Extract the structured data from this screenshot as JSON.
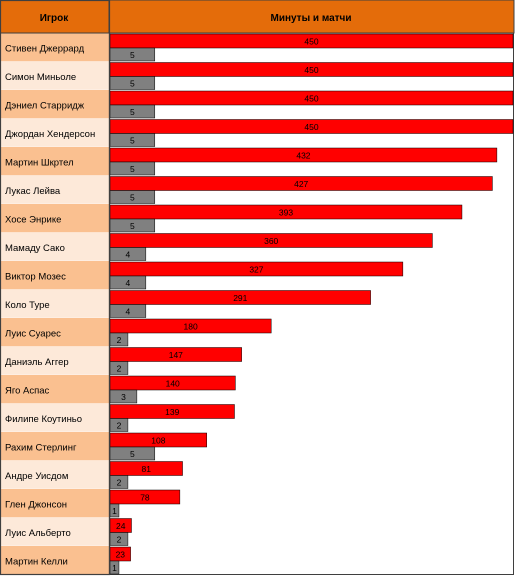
{
  "header": {
    "player_col": "Игрок",
    "value_col": "Минуты и матчи"
  },
  "colors": {
    "header_bg": "#e46c0a",
    "row_dark": "#fac090",
    "row_light": "#fde9d9",
    "minutes_bar": "#ff0000",
    "matches_bar": "#808080",
    "border": "#3f3f3f"
  },
  "chart_data": {
    "type": "bar",
    "orientation": "horizontal",
    "categories": [
      "Стивен Джеррард",
      "Симон Миньоле",
      "Дэниел Старридж",
      "Джордан Хендерсон",
      "Мартин Шкртел",
      "Лукас Лейва",
      "Хосе Энрике",
      "Мамаду Сако",
      "Виктор Мозес",
      "Коло Туре",
      "Луис Суарес",
      "Даниэль Аггер",
      "Яго Аспас",
      "Филипе Коутиньо",
      "Рахим Стерлинг",
      "Андре Уисдом",
      "Глен Джонсон",
      "Луис Альберто",
      "Мартин Келли"
    ],
    "series": [
      {
        "values": [
          450,
          450,
          450,
          450,
          432,
          427,
          393,
          360,
          327,
          291,
          180,
          147,
          140,
          139,
          108,
          81,
          78,
          24,
          23
        ]
      },
      {
        "values": [
          5,
          5,
          5,
          5,
          5,
          5,
          5,
          4,
          4,
          4,
          2,
          2,
          3,
          2,
          5,
          2,
          1,
          2,
          1
        ]
      }
    ],
    "xlim": [
      0,
      450
    ],
    "matches_lim": [
      0,
      45
    ],
    "data_labels": true,
    "grid": false,
    "legend": false
  }
}
